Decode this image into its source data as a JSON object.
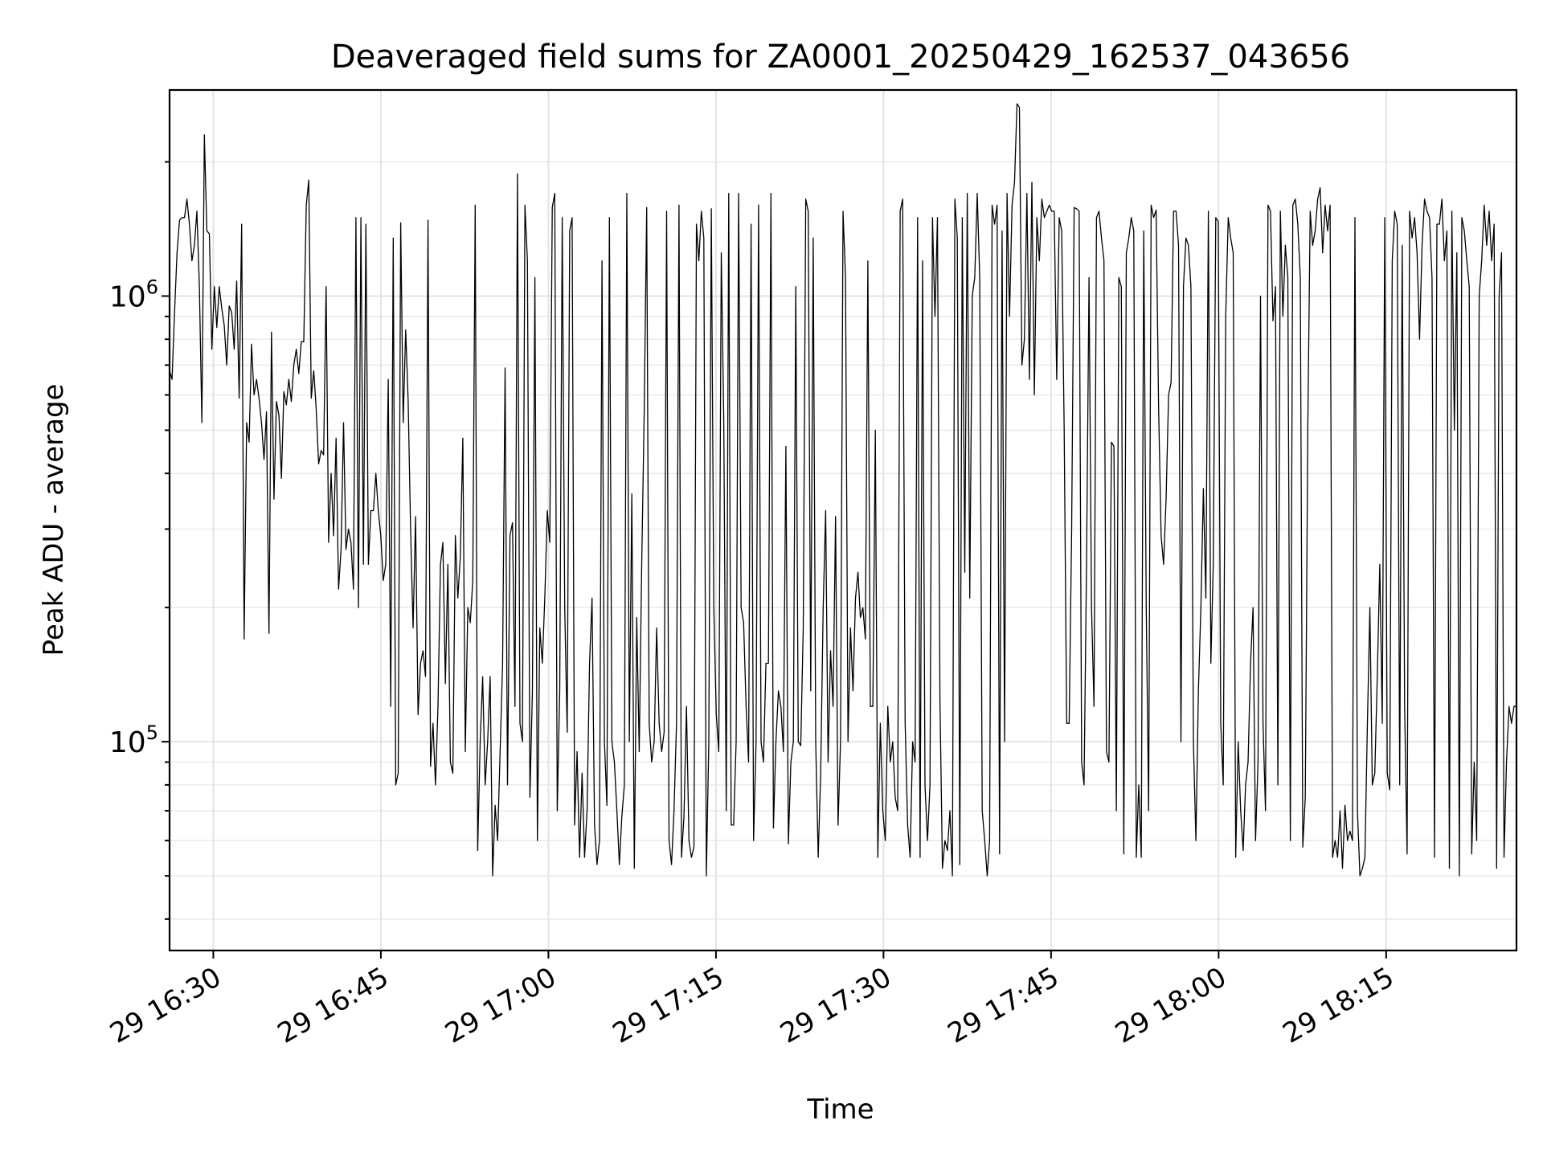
{
  "chart_data": {
    "type": "line",
    "title": "Deaveraged field sums for ZA0001_20250429_162537_043656",
    "xlabel": "Time",
    "ylabel": "Peak ADU - average",
    "yscale": "log",
    "grid": true,
    "x_ticks": [
      "29 16:30",
      "29 16:45",
      "29 17:00",
      "29 17:15",
      "29 17:30",
      "29 17:45",
      "29 18:00",
      "29 18:15"
    ],
    "y_ticks": [
      {
        "base": "10",
        "exp": "5",
        "value": 100000
      },
      {
        "base": "10",
        "exp": "6",
        "value": 1000000
      }
    ],
    "xlim": [
      "2025-04-29 16:26:05",
      "2025-04-29 18:26:40"
    ],
    "ylim": [
      34000,
      2900000
    ],
    "series": [
      {
        "color": "#000000",
        "x_start": "2025-04-29 16:26:05",
        "x_end": "2025-04-29 18:26:40",
        "x_step_seconds": 8.0,
        "y": [
          680000,
          650000,
          920000,
          1250000,
          1480000,
          1500000,
          1500000,
          1650000,
          1450000,
          1200000,
          1300000,
          1550000,
          1050000,
          520000,
          2300000,
          1400000,
          1380000,
          760000,
          1050000,
          850000,
          1050000,
          940000,
          860000,
          700000,
          950000,
          920000,
          760000,
          1080000,
          590000,
          1450000,
          170000,
          520000,
          470000,
          780000,
          600000,
          650000,
          590000,
          520000,
          430000,
          550000,
          175000,
          830000,
          350000,
          580000,
          540000,
          390000,
          610000,
          570000,
          650000,
          580000,
          700000,
          760000,
          670000,
          790000,
          790000,
          1600000,
          1820000,
          590000,
          680000,
          560000,
          420000,
          450000,
          440000,
          1050000,
          280000,
          400000,
          290000,
          480000,
          220000,
          270000,
          520000,
          270000,
          300000,
          280000,
          220000,
          1500000,
          200000,
          1500000,
          250000,
          1450000,
          250000,
          330000,
          330000,
          400000,
          330000,
          290000,
          230000,
          250000,
          650000,
          120000,
          1350000,
          80000,
          85000,
          1460000,
          520000,
          840000,
          580000,
          300000,
          180000,
          320000,
          115000,
          150000,
          160000,
          140000,
          1480000,
          88000,
          110000,
          80000,
          120000,
          250000,
          280000,
          135000,
          250000,
          90000,
          85000,
          290000,
          210000,
          260000,
          480000,
          95000,
          200000,
          185000,
          230000,
          1600000,
          57000,
          100000,
          140000,
          80000,
          100000,
          140000,
          50000,
          72000,
          60000,
          95000,
          150000,
          690000,
          80000,
          290000,
          310000,
          120000,
          1880000,
          110000,
          100000,
          1600000,
          1200000,
          75000,
          130000,
          1100000,
          60000,
          180000,
          150000,
          210000,
          330000,
          280000,
          1580000,
          1700000,
          70000,
          130000,
          1500000,
          200000,
          105000,
          1400000,
          1500000,
          65000,
          95000,
          55000,
          85000,
          55000,
          70000,
          150000,
          210000,
          65000,
          53000,
          60000,
          1200000,
          100000,
          72000,
          1500000,
          100000,
          90000,
          70000,
          53000,
          68000,
          80000,
          1700000,
          100000,
          360000,
          52000,
          190000,
          95000,
          250000,
          550000,
          1580000,
          110000,
          90000,
          100000,
          180000,
          110000,
          95000,
          105000,
          1550000,
          60000,
          53000,
          70000,
          110000,
          1600000,
          55000,
          68000,
          120000,
          60000,
          55000,
          58000,
          1450000,
          1200000,
          1550000,
          1350000,
          50000,
          100000,
          1570000,
          200000,
          115000,
          95000,
          1250000,
          530000,
          70000,
          1700000,
          65000,
          65000,
          100000,
          1700000,
          200000,
          185000,
          120000,
          90000,
          1450000,
          60000,
          100000,
          1600000,
          100000,
          90000,
          150000,
          150000,
          1700000,
          64000,
          100000,
          130000,
          120000,
          95000,
          460000,
          59000,
          90000,
          100000,
          1050000,
          100000,
          98000,
          180000,
          1650000,
          1550000,
          130000,
          1350000,
          100000,
          55000,
          85000,
          200000,
          330000,
          90000,
          160000,
          120000,
          320000,
          65000,
          100000,
          1550000,
          1100000,
          100000,
          180000,
          130000,
          210000,
          240000,
          190000,
          200000,
          170000,
          1200000,
          120000,
          120000,
          500000,
          55000,
          110000,
          70000,
          60000,
          120000,
          90000,
          100000,
          75000,
          70000,
          1550000,
          1650000,
          110000,
          65000,
          55000,
          100000,
          90000,
          1500000,
          55000,
          1200000,
          80000,
          60000,
          80000,
          1500000,
          900000,
          1500000,
          125000,
          52000,
          60000,
          57000,
          70000,
          50000,
          1650000,
          1350000,
          53000,
          1500000,
          240000,
          1700000,
          210000,
          1000000,
          1100000,
          1700000,
          1100000,
          70000,
          60000,
          50000,
          60000,
          1600000,
          1450000,
          1600000,
          56000,
          1400000,
          100000,
          1700000,
          900000,
          1600000,
          1800000,
          2700000,
          2650000,
          700000,
          800000,
          1700000,
          650000,
          1800000,
          600000,
          1500000,
          1200000,
          1650000,
          1500000,
          1550000,
          1600000,
          1550000,
          1550000,
          650000,
          1500000,
          1400000,
          500000,
          110000,
          110000,
          300000,
          1580000,
          1570000,
          1550000,
          90000,
          80000,
          250000,
          1100000,
          200000,
          120000,
          1500000,
          1550000,
          1350000,
          1200000,
          95000,
          90000,
          470000,
          460000,
          70000,
          1100000,
          1050000,
          56000,
          1250000,
          1350000,
          1500000,
          1400000,
          55000,
          80000,
          55000,
          1400000,
          200000,
          70000,
          1600000,
          1500000,
          1560000,
          560000,
          290000,
          250000,
          350000,
          600000,
          640000,
          1550000,
          1550000,
          1300000,
          100000,
          1050000,
          1350000,
          1300000,
          1050000,
          100000,
          60000,
          130000,
          200000,
          370000,
          210000,
          1550000,
          150000,
          250000,
          1500000,
          1470000,
          110000,
          80000,
          900000,
          1500000,
          1350000,
          1250000,
          55000,
          100000,
          70000,
          57000,
          80000,
          90000,
          150000,
          200000,
          60000,
          90000,
          1000000,
          110000,
          70000,
          1600000,
          1550000,
          880000,
          1050000,
          80000,
          1550000,
          900000,
          1300000,
          1100000,
          60000,
          1600000,
          1650000,
          1450000,
          1100000,
          58000,
          75000,
          500000,
          1550000,
          1300000,
          1400000,
          1650000,
          1750000,
          1250000,
          1600000,
          1400000,
          1600000,
          55000,
          60000,
          55000,
          70000,
          52000,
          72000,
          60000,
          63000,
          60000,
          1500000,
          70000,
          50000,
          52000,
          55000,
          110000,
          200000,
          80000,
          85000,
          140000,
          250000,
          110000,
          1500000,
          85000,
          78000,
          1200000,
          1550000,
          1450000,
          80000,
          1300000,
          120000,
          56000,
          1550000,
          1350000,
          1500000,
          1250000,
          800000,
          1300000,
          1650000,
          1550000,
          1500000,
          1100000,
          55000,
          1450000,
          1450000,
          1650000,
          1200000,
          1400000,
          52000,
          1550000,
          500000,
          1250000,
          50000,
          1500000,
          1400000,
          1200000,
          1050000,
          56000,
          90000,
          60000,
          1000000,
          1200000,
          1600000,
          1300000,
          1550000,
          1200000,
          1450000,
          52000,
          1000000,
          1250000,
          55000,
          90000,
          120000,
          110000,
          120000,
          120000
        ]
      }
    ]
  }
}
